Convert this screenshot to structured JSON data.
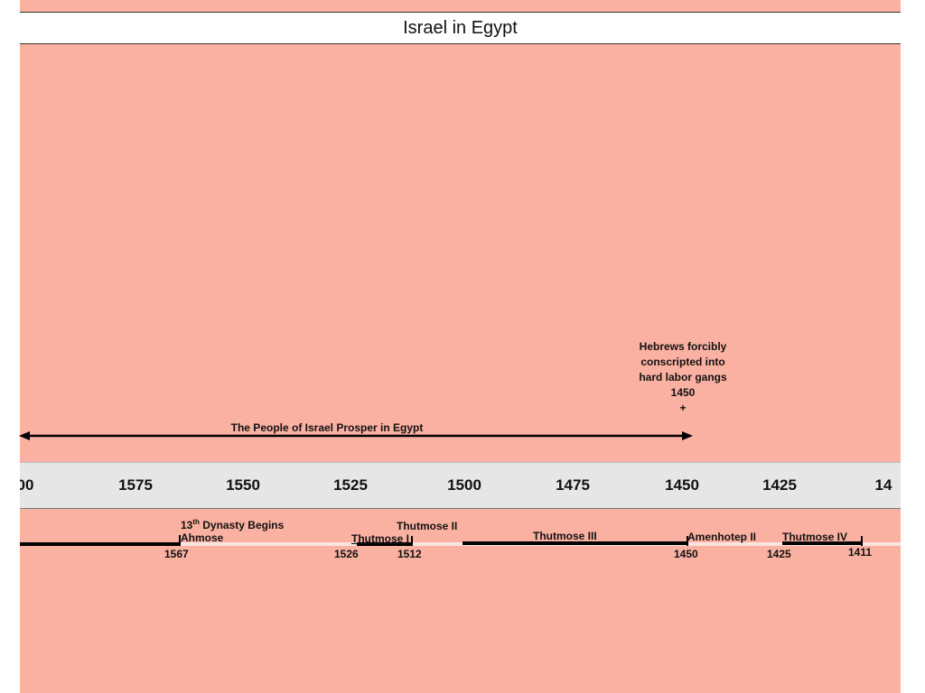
{
  "title": "Israel in Egypt",
  "callout": {
    "lines": [
      "Hebrews forcibly",
      "conscripted into",
      "hard labor gangs"
    ],
    "year": "1450",
    "marker": "+"
  },
  "era_label": "The People of Israel Prosper in Egypt",
  "axis_ticks": [
    "00",
    "1575",
    "1550",
    "1525",
    "1500",
    "1475",
    "1450",
    "1425",
    "14"
  ],
  "rulers": {
    "dynasty_prefix": "13",
    "dynasty_sup": "th",
    "dynasty_rest": " Dynasty Begins",
    "ahmose": "Ahmose",
    "thutmose1": "Thutmose I",
    "thutmose2": "Thutmose II",
    "thutmose3": "Thutmose III",
    "amenhotep2": "Amenhotep II",
    "thutmose4": "Thutmose IV"
  },
  "reign_years": {
    "y1567": "1567",
    "y1526": "1526",
    "y1512": "1512",
    "y1450": "1450",
    "y1425": "1425",
    "y1411": "1411"
  },
  "colors": {
    "background": "#fbb1a2",
    "axis_band": "#e6e6e6",
    "line": "#000000"
  }
}
